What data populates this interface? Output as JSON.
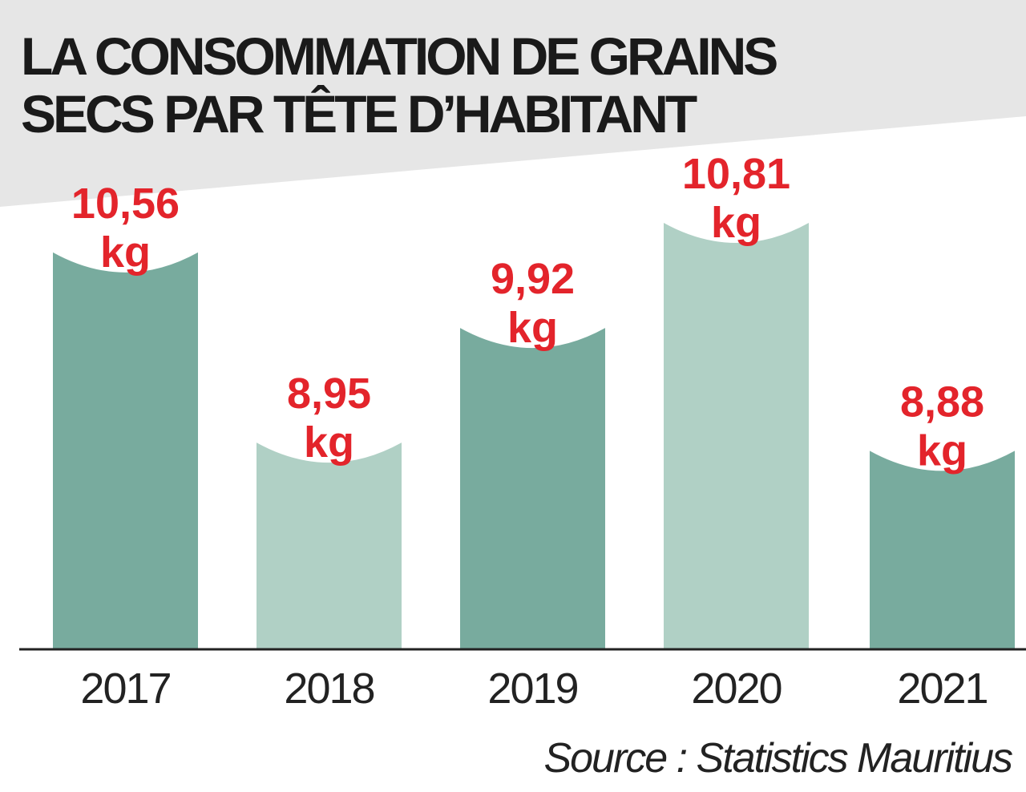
{
  "chart_data": {
    "type": "bar",
    "title_lines": [
      "LA CONSOMMATION DE GRAINS",
      "SECS PAR TÊTE D’HABITANT"
    ],
    "categories": [
      "2017",
      "2018",
      "2019",
      "2020",
      "2021"
    ],
    "values": [
      10.56,
      8.95,
      9.92,
      10.81,
      8.88
    ],
    "value_labels": [
      "10,56",
      "8,95",
      "9,92",
      "10,81",
      "8,88"
    ],
    "unit": "kg",
    "source": "Source : Statistics Mauritius",
    "ylim": [
      7.2,
      11.0
    ],
    "grid": false,
    "colors": {
      "bar_dark": "#78ab9e",
      "bar_light": "#b0d0c5",
      "value_label": "#e3242b",
      "header_band": "#e6e6e6"
    },
    "bar_color_pattern": [
      "dark",
      "light",
      "dark",
      "light",
      "dark"
    ]
  }
}
